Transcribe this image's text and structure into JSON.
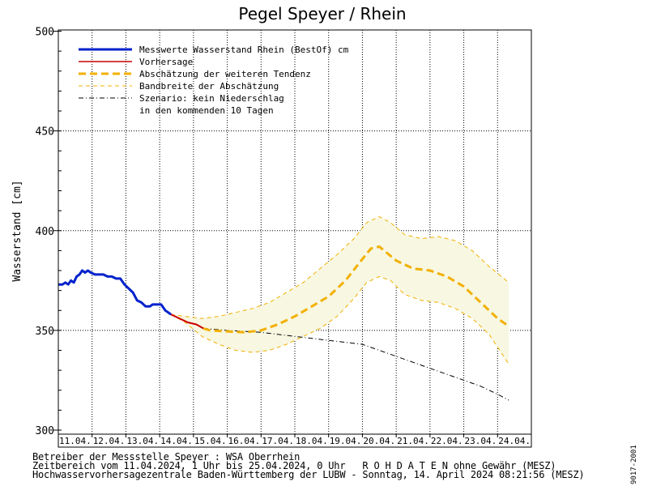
{
  "chart_data": {
    "type": "line",
    "title": "Pegel Speyer / Rhein",
    "ylabel": "Wasserstand [cm]",
    "ylim": [
      300,
      500
    ],
    "yticks": [
      300,
      350,
      400,
      450,
      500
    ],
    "xlim": [
      "2024-04-11T00:00",
      "2024-04-25T00:00"
    ],
    "day_labels": [
      "11.04.",
      "12.04.",
      "13.04.",
      "14.04.",
      "15.04.",
      "16.04.",
      "17.04.",
      "18.04.",
      "19.04.",
      "20.04.",
      "21.04.",
      "22.04.",
      "23.04.",
      "24.04."
    ],
    "grid": true,
    "legend_position": "top-left",
    "legend": [
      {
        "label": "Messwerte Wasserstand Rhein (BestOf)   cm",
        "style": "solid-thick",
        "color": "#0022cc"
      },
      {
        "label": "Vorhersage",
        "style": "solid",
        "color": "#cc0000"
      },
      {
        "label": "Abschätzung der weiteren Tendenz",
        "style": "dashed-thick",
        "color": "#f2b000"
      },
      {
        "label": "Bandbreite der Abschätzung",
        "style": "dashed-thin",
        "color": "#f2b000"
      },
      {
        "label": "Szenario: kein Niederschlag",
        "style": "dashdot",
        "color": "#000000"
      },
      {
        "label": "in den kommenden 10 Tagen",
        "style": "none",
        "color": "#000000"
      }
    ],
    "series": [
      {
        "key": "measured",
        "color": "#0022cc",
        "x": [
          "2024-04-11T00:00",
          "2024-04-11T03:00",
          "2024-04-11T05:00",
          "2024-04-11T07:00",
          "2024-04-11T09:00",
          "2024-04-11T11:00",
          "2024-04-11T13:00",
          "2024-04-11T15:00",
          "2024-04-11T17:00",
          "2024-04-11T19:00",
          "2024-04-11T21:00",
          "2024-04-11T23:00",
          "2024-04-12T02:00",
          "2024-04-12T05:00",
          "2024-04-12T08:00",
          "2024-04-12T11:00",
          "2024-04-12T14:00",
          "2024-04-12T17:00",
          "2024-04-12T20:00",
          "2024-04-12T23:00",
          "2024-04-13T02:00",
          "2024-04-13T05:00",
          "2024-04-13T08:00",
          "2024-04-13T11:00",
          "2024-04-13T14:00",
          "2024-04-13T17:00",
          "2024-04-13T19:00",
          "2024-04-13T22:00",
          "2024-04-14T01:00",
          "2024-04-14T04:00",
          "2024-04-14T06:00",
          "2024-04-14T08:00"
        ],
        "y": [
          373,
          373,
          374,
          373,
          375,
          374,
          377,
          378,
          380,
          379,
          380,
          379,
          378,
          378,
          378,
          377,
          377,
          376,
          376,
          373,
          371,
          369,
          365,
          364,
          362,
          362,
          363,
          363,
          363,
          360,
          359,
          358
        ]
      },
      {
        "key": "forecast",
        "color": "#cc0000",
        "x": [
          "2024-04-14T08:00",
          "2024-04-14T14:00",
          "2024-04-14T20:00",
          "2024-04-15T02:00",
          "2024-04-15T07:00"
        ],
        "y": [
          358,
          356,
          354,
          353,
          351
        ]
      },
      {
        "key": "tendency",
        "color": "#f2b000",
        "x": [
          "2024-04-15T07:00",
          "2024-04-15T12:00",
          "2024-04-16T00:00",
          "2024-04-16T12:00",
          "2024-04-17T00:00",
          "2024-04-17T12:00",
          "2024-04-18T00:00",
          "2024-04-18T12:00",
          "2024-04-19T00:00",
          "2024-04-19T12:00",
          "2024-04-19T22:00",
          "2024-04-20T06:00",
          "2024-04-20T12:00",
          "2024-04-21T00:00",
          "2024-04-21T12:00",
          "2024-04-22T00:00",
          "2024-04-22T12:00",
          "2024-04-23T00:00",
          "2024-04-23T12:00",
          "2024-04-24T00:00",
          "2024-04-24T08:00"
        ],
        "y": [
          351,
          350,
          349.5,
          349,
          350,
          353,
          357,
          362,
          367,
          375,
          384,
          391,
          392,
          385,
          381,
          380,
          377,
          372,
          364,
          356,
          352
        ]
      },
      {
        "key": "band_upper",
        "color": "#f2b000",
        "x": [
          "2024-04-14T08:00",
          "2024-04-14T18:00",
          "2024-04-15T06:00",
          "2024-04-15T18:00",
          "2024-04-16T06:00",
          "2024-04-16T18:00",
          "2024-04-17T06:00",
          "2024-04-17T18:00",
          "2024-04-18T06:00",
          "2024-04-18T18:00",
          "2024-04-19T06:00",
          "2024-04-19T18:00",
          "2024-04-20T03:00",
          "2024-04-20T12:00",
          "2024-04-20T20:00",
          "2024-04-21T06:00",
          "2024-04-21T18:00",
          "2024-04-22T06:00",
          "2024-04-22T18:00",
          "2024-04-23T06:00",
          "2024-04-23T18:00",
          "2024-04-24T08:00"
        ],
        "y": [
          358,
          357,
          356,
          357,
          359,
          361,
          364,
          369,
          374,
          381,
          388,
          396,
          404,
          407,
          404,
          398,
          396,
          397,
          395,
          390,
          382,
          374
        ]
      },
      {
        "key": "band_lower",
        "color": "#f2b000",
        "x": [
          "2024-04-14T08:00",
          "2024-04-14T18:00",
          "2024-04-15T06:00",
          "2024-04-15T18:00",
          "2024-04-16T06:00",
          "2024-04-16T18:00",
          "2024-04-17T06:00",
          "2024-04-17T18:00",
          "2024-04-18T06:00",
          "2024-04-18T18:00",
          "2024-04-19T06:00",
          "2024-04-19T18:00",
          "2024-04-20T03:00",
          "2024-04-20T12:00",
          "2024-04-20T20:00",
          "2024-04-21T06:00",
          "2024-04-21T18:00",
          "2024-04-22T06:00",
          "2024-04-22T18:00",
          "2024-04-23T06:00",
          "2024-04-23T18:00",
          "2024-04-24T08:00"
        ],
        "y": [
          358,
          354,
          347,
          343,
          340,
          339,
          340,
          343,
          347,
          351,
          357,
          366,
          374,
          377,
          375,
          368,
          365,
          364,
          361,
          356,
          348,
          333
        ]
      },
      {
        "key": "no_precip",
        "color": "#000000",
        "x": [
          "2024-04-15T07:00",
          "2024-04-16T00:00",
          "2024-04-17T00:00",
          "2024-04-18T00:00",
          "2024-04-19T00:00",
          "2024-04-20T00:00",
          "2024-04-20T12:00",
          "2024-04-21T00:00",
          "2024-04-21T12:00",
          "2024-04-22T00:00",
          "2024-04-22T12:00",
          "2024-04-23T00:00",
          "2024-04-23T12:00",
          "2024-04-24T00:00",
          "2024-04-24T08:00"
        ],
        "y": [
          351,
          350,
          349,
          347,
          345,
          343,
          340,
          337,
          334,
          331,
          328,
          325,
          322,
          318,
          315
        ]
      }
    ]
  },
  "footer": {
    "line1": "Betreiber der Messstelle Speyer : WSA Oberrhein",
    "line2": "Zeitbereich vom 11.04.2024, 1 Uhr bis 25.04.2024, 0 Uhr   R O H D A T E N ohne Gewähr (MESZ)",
    "line3": "Hochwasservorhersagezentrale Baden-Württemberg der LUBW - Sonntag, 14. April 2024 08:21:56 (MESZ)"
  },
  "side_code": "9017-2001"
}
